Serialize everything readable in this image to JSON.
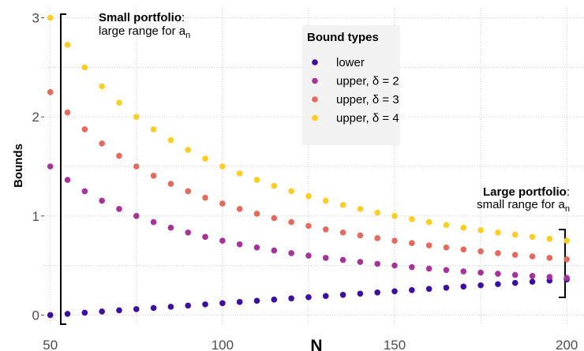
{
  "chart_data": {
    "type": "scatter",
    "xlabel": "N",
    "ylabel": "Bounds",
    "xlim": [
      48,
      205
    ],
    "ylim": [
      -0.1,
      3.1
    ],
    "x_ticks": [
      50,
      100,
      150,
      200
    ],
    "x_tick_labels": [
      "50",
      "100",
      "150",
      "200"
    ],
    "y_ticks": [
      0,
      1,
      2,
      3
    ],
    "y_tick_labels": [
      "0",
      "1",
      "2",
      "3"
    ],
    "grid": true,
    "legend": {
      "title": "Bound types",
      "position": "top-right"
    },
    "x": [
      50,
      55,
      60,
      65,
      70,
      75,
      80,
      85,
      90,
      95,
      100,
      105,
      110,
      115,
      120,
      125,
      130,
      135,
      140,
      145,
      150,
      155,
      160,
      165,
      170,
      175,
      180,
      185,
      190,
      195,
      200
    ],
    "series": [
      {
        "name": "lower",
        "color": "#3b0f9f",
        "values": [
          0.0,
          0.012,
          0.024,
          0.036,
          0.048,
          0.06,
          0.072,
          0.084,
          0.096,
          0.108,
          0.12,
          0.132,
          0.144,
          0.156,
          0.168,
          0.18,
          0.192,
          0.204,
          0.216,
          0.228,
          0.24,
          0.252,
          0.264,
          0.276,
          0.288,
          0.3,
          0.312,
          0.324,
          0.336,
          0.348,
          0.36
        ]
      },
      {
        "name": "upper, δ = 2",
        "color": "#a63397",
        "values": [
          1.5,
          1.364,
          1.25,
          1.154,
          1.071,
          1.0,
          0.938,
          0.882,
          0.833,
          0.789,
          0.75,
          0.714,
          0.682,
          0.652,
          0.625,
          0.6,
          0.577,
          0.556,
          0.536,
          0.517,
          0.5,
          0.484,
          0.469,
          0.455,
          0.441,
          0.429,
          0.417,
          0.405,
          0.395,
          0.385,
          0.375
        ]
      },
      {
        "name": "upper, δ = 3",
        "color": "#e4695e",
        "values": [
          2.25,
          2.045,
          1.875,
          1.731,
          1.607,
          1.5,
          1.406,
          1.324,
          1.25,
          1.184,
          1.125,
          1.071,
          1.023,
          0.978,
          0.938,
          0.9,
          0.865,
          0.833,
          0.804,
          0.776,
          0.75,
          0.726,
          0.703,
          0.682,
          0.662,
          0.643,
          0.625,
          0.608,
          0.592,
          0.577,
          0.5625
        ]
      },
      {
        "name": "upper, δ = 4",
        "color": "#fccd25",
        "values": [
          3.0,
          2.727,
          2.5,
          2.308,
          2.143,
          2.0,
          1.875,
          1.765,
          1.667,
          1.579,
          1.5,
          1.429,
          1.364,
          1.304,
          1.25,
          1.2,
          1.154,
          1.111,
          1.071,
          1.034,
          1.0,
          0.968,
          0.938,
          0.909,
          0.882,
          0.857,
          0.833,
          0.811,
          0.789,
          0.769,
          0.75
        ]
      }
    ],
    "annotations": {
      "small_bold": "Small portfolio",
      "small_colon": ":",
      "small_text": "large range for a",
      "small_sub": "n",
      "large_bold": "Large portfolio",
      "large_colon": ":",
      "large_text": "small range for a",
      "large_sub": "n"
    }
  }
}
